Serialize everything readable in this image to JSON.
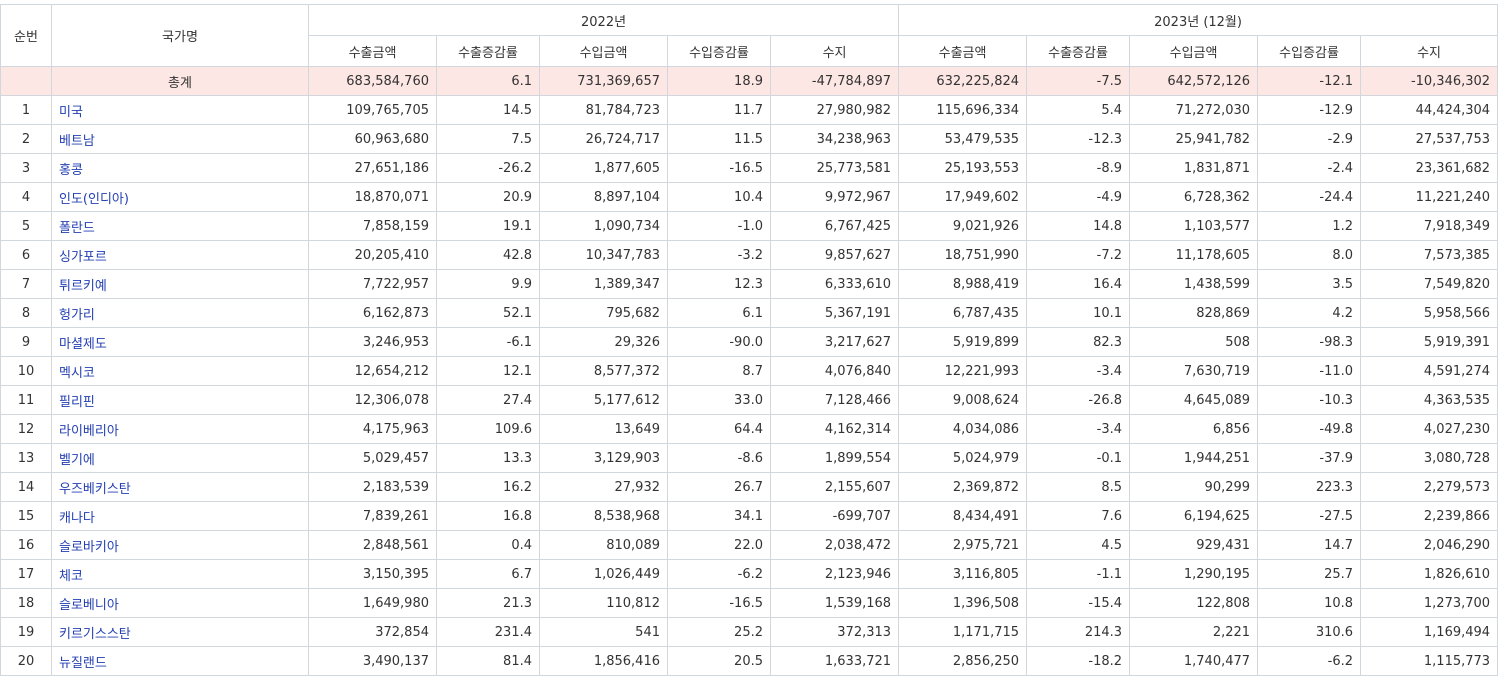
{
  "headers": {
    "rank": "순번",
    "country": "국가명",
    "group_2022": "2022년",
    "group_2023": "2023년 (12월)",
    "cols": [
      "수출금액",
      "수출증감률",
      "수입금액",
      "수입증감률",
      "수지"
    ]
  },
  "total": {
    "label": "총계",
    "y2022": [
      "683,584,760",
      "6.1",
      "731,369,657",
      "18.9",
      "-47,784,897"
    ],
    "y2023": [
      "632,225,824",
      "-7.5",
      "642,572,126",
      "-12.1",
      "-10,346,302"
    ]
  },
  "rows": [
    {
      "rank": "1",
      "country": "미국",
      "y2022": [
        "109,765,705",
        "14.5",
        "81,784,723",
        "11.7",
        "27,980,982"
      ],
      "y2023": [
        "115,696,334",
        "5.4",
        "71,272,030",
        "-12.9",
        "44,424,304"
      ]
    },
    {
      "rank": "2",
      "country": "베트남",
      "y2022": [
        "60,963,680",
        "7.5",
        "26,724,717",
        "11.5",
        "34,238,963"
      ],
      "y2023": [
        "53,479,535",
        "-12.3",
        "25,941,782",
        "-2.9",
        "27,537,753"
      ]
    },
    {
      "rank": "3",
      "country": "홍콩",
      "y2022": [
        "27,651,186",
        "-26.2",
        "1,877,605",
        "-16.5",
        "25,773,581"
      ],
      "y2023": [
        "25,193,553",
        "-8.9",
        "1,831,871",
        "-2.4",
        "23,361,682"
      ]
    },
    {
      "rank": "4",
      "country": "인도(인디아)",
      "y2022": [
        "18,870,071",
        "20.9",
        "8,897,104",
        "10.4",
        "9,972,967"
      ],
      "y2023": [
        "17,949,602",
        "-4.9",
        "6,728,362",
        "-24.4",
        "11,221,240"
      ]
    },
    {
      "rank": "5",
      "country": "폴란드",
      "y2022": [
        "7,858,159",
        "19.1",
        "1,090,734",
        "-1.0",
        "6,767,425"
      ],
      "y2023": [
        "9,021,926",
        "14.8",
        "1,103,577",
        "1.2",
        "7,918,349"
      ]
    },
    {
      "rank": "6",
      "country": "싱가포르",
      "y2022": [
        "20,205,410",
        "42.8",
        "10,347,783",
        "-3.2",
        "9,857,627"
      ],
      "y2023": [
        "18,751,990",
        "-7.2",
        "11,178,605",
        "8.0",
        "7,573,385"
      ]
    },
    {
      "rank": "7",
      "country": "튀르키예",
      "y2022": [
        "7,722,957",
        "9.9",
        "1,389,347",
        "12.3",
        "6,333,610"
      ],
      "y2023": [
        "8,988,419",
        "16.4",
        "1,438,599",
        "3.5",
        "7,549,820"
      ]
    },
    {
      "rank": "8",
      "country": "헝가리",
      "y2022": [
        "6,162,873",
        "52.1",
        "795,682",
        "6.1",
        "5,367,191"
      ],
      "y2023": [
        "6,787,435",
        "10.1",
        "828,869",
        "4.2",
        "5,958,566"
      ]
    },
    {
      "rank": "9",
      "country": "마셜제도",
      "y2022": [
        "3,246,953",
        "-6.1",
        "29,326",
        "-90.0",
        "3,217,627"
      ],
      "y2023": [
        "5,919,899",
        "82.3",
        "508",
        "-98.3",
        "5,919,391"
      ]
    },
    {
      "rank": "10",
      "country": "멕시코",
      "y2022": [
        "12,654,212",
        "12.1",
        "8,577,372",
        "8.7",
        "4,076,840"
      ],
      "y2023": [
        "12,221,993",
        "-3.4",
        "7,630,719",
        "-11.0",
        "4,591,274"
      ]
    },
    {
      "rank": "11",
      "country": "필리핀",
      "y2022": [
        "12,306,078",
        "27.4",
        "5,177,612",
        "33.0",
        "7,128,466"
      ],
      "y2023": [
        "9,008,624",
        "-26.8",
        "4,645,089",
        "-10.3",
        "4,363,535"
      ]
    },
    {
      "rank": "12",
      "country": "라이베리아",
      "y2022": [
        "4,175,963",
        "109.6",
        "13,649",
        "64.4",
        "4,162,314"
      ],
      "y2023": [
        "4,034,086",
        "-3.4",
        "6,856",
        "-49.8",
        "4,027,230"
      ]
    },
    {
      "rank": "13",
      "country": "벨기에",
      "y2022": [
        "5,029,457",
        "13.3",
        "3,129,903",
        "-8.6",
        "1,899,554"
      ],
      "y2023": [
        "5,024,979",
        "-0.1",
        "1,944,251",
        "-37.9",
        "3,080,728"
      ]
    },
    {
      "rank": "14",
      "country": "우즈베키스탄",
      "y2022": [
        "2,183,539",
        "16.2",
        "27,932",
        "26.7",
        "2,155,607"
      ],
      "y2023": [
        "2,369,872",
        "8.5",
        "90,299",
        "223.3",
        "2,279,573"
      ]
    },
    {
      "rank": "15",
      "country": "캐나다",
      "y2022": [
        "7,839,261",
        "16.8",
        "8,538,968",
        "34.1",
        "-699,707"
      ],
      "y2023": [
        "8,434,491",
        "7.6",
        "6,194,625",
        "-27.5",
        "2,239,866"
      ]
    },
    {
      "rank": "16",
      "country": "슬로바키아",
      "y2022": [
        "2,848,561",
        "0.4",
        "810,089",
        "22.0",
        "2,038,472"
      ],
      "y2023": [
        "2,975,721",
        "4.5",
        "929,431",
        "14.7",
        "2,046,290"
      ]
    },
    {
      "rank": "17",
      "country": "체코",
      "y2022": [
        "3,150,395",
        "6.7",
        "1,026,449",
        "-6.2",
        "2,123,946"
      ],
      "y2023": [
        "3,116,805",
        "-1.1",
        "1,290,195",
        "25.7",
        "1,826,610"
      ]
    },
    {
      "rank": "18",
      "country": "슬로베니아",
      "y2022": [
        "1,649,980",
        "21.3",
        "110,812",
        "-16.5",
        "1,539,168"
      ],
      "y2023": [
        "1,396,508",
        "-15.4",
        "122,808",
        "10.8",
        "1,273,700"
      ]
    },
    {
      "rank": "19",
      "country": "키르기스스탄",
      "y2022": [
        "372,854",
        "231.4",
        "541",
        "25.2",
        "372,313"
      ],
      "y2023": [
        "1,171,715",
        "214.3",
        "2,221",
        "310.6",
        "1,169,494"
      ]
    },
    {
      "rank": "20",
      "country": "뉴질랜드",
      "y2022": [
        "3,490,137",
        "81.4",
        "1,856,416",
        "20.5",
        "1,633,721"
      ],
      "y2023": [
        "2,856,250",
        "-18.2",
        "1,740,477",
        "-6.2",
        "1,115,773"
      ]
    }
  ]
}
